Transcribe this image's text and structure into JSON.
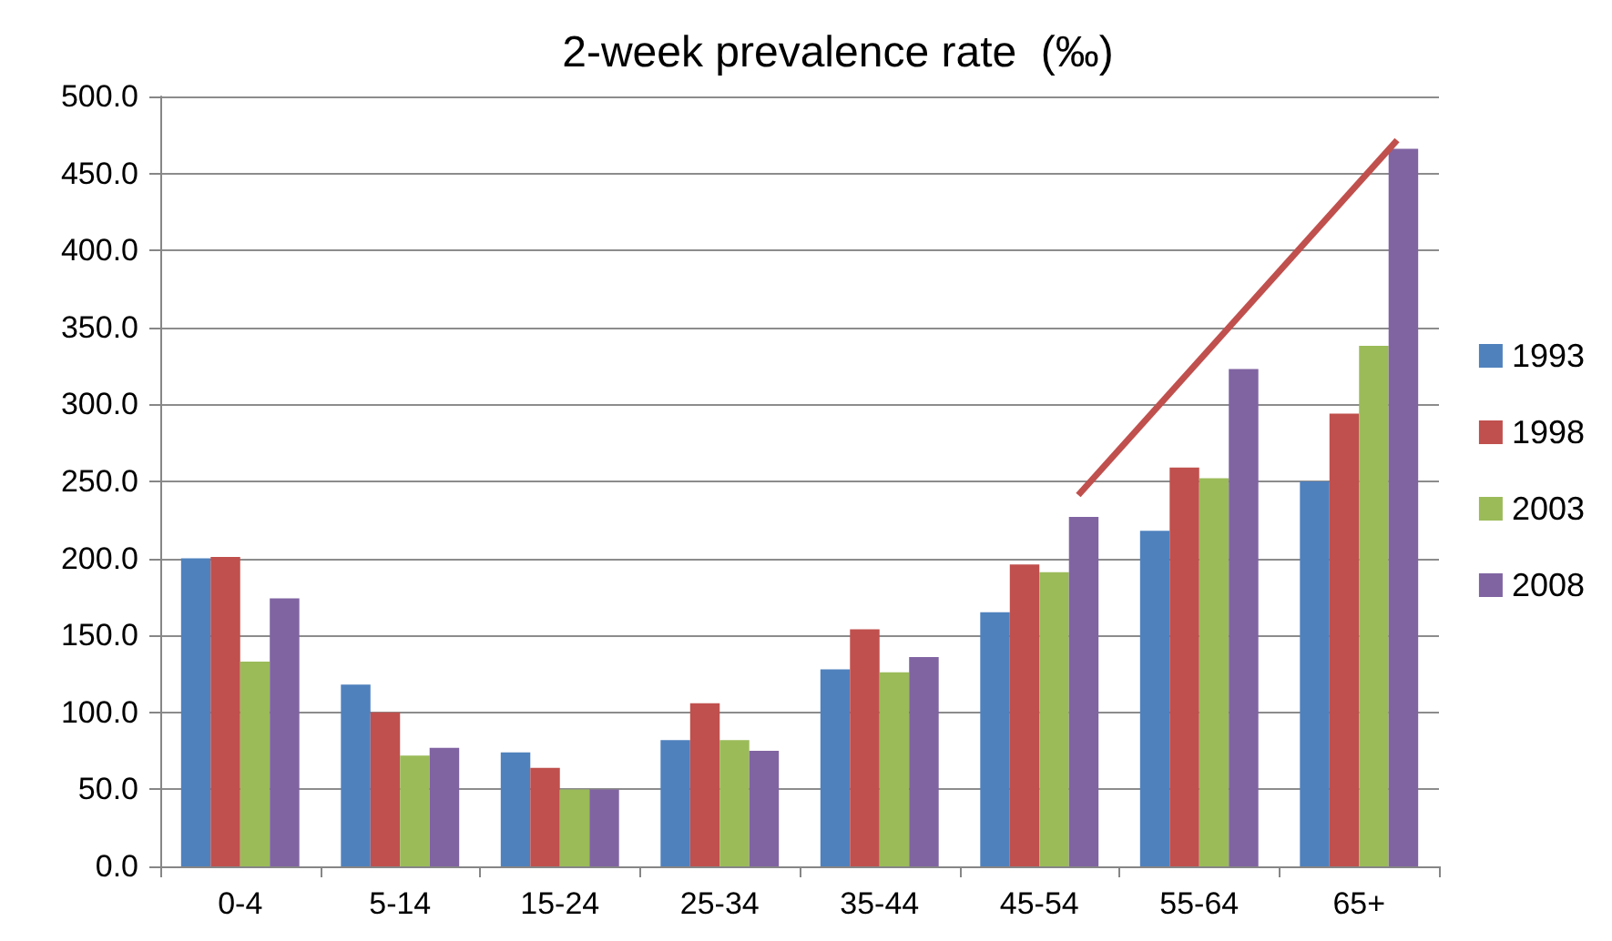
{
  "chart_data": {
    "type": "bar",
    "title": "2-week prevalence rate  (‰)",
    "categories": [
      "0-4",
      "5-14",
      "15-24",
      "25-34",
      "35-44",
      "45-54",
      "55-64",
      "65+"
    ],
    "series": [
      {
        "name": "1993",
        "color": "#4f81bd",
        "values": [
          200,
          118,
          74,
          82,
          128,
          165,
          218,
          250
        ]
      },
      {
        "name": "1998",
        "color": "#c0504d",
        "values": [
          201,
          100,
          64,
          106,
          154,
          196,
          259,
          294
        ]
      },
      {
        "name": "2003",
        "color": "#9bbb59",
        "values": [
          133,
          72,
          50,
          82,
          126,
          191,
          252,
          338
        ]
      },
      {
        "name": "2008",
        "color": "#8064a2",
        "values": [
          174,
          77,
          50,
          75,
          136,
          227,
          323,
          466
        ]
      }
    ],
    "ylim": [
      0,
      500
    ],
    "yticks": [
      {
        "value": 0,
        "label": "0.0"
      },
      {
        "value": 50,
        "label": "50.0"
      },
      {
        "value": 100,
        "label": "100.0"
      },
      {
        "value": 150,
        "label": "150.0"
      },
      {
        "value": 200,
        "label": "200.0"
      },
      {
        "value": 250,
        "label": "250.0"
      },
      {
        "value": 300,
        "label": "300.0"
      },
      {
        "value": 350,
        "label": "350.0"
      },
      {
        "value": 400,
        "label": "400.0"
      },
      {
        "value": 450,
        "label": "450.0"
      },
      {
        "value": 500,
        "label": "500.0"
      }
    ],
    "grid": "y",
    "legend": "right"
  }
}
